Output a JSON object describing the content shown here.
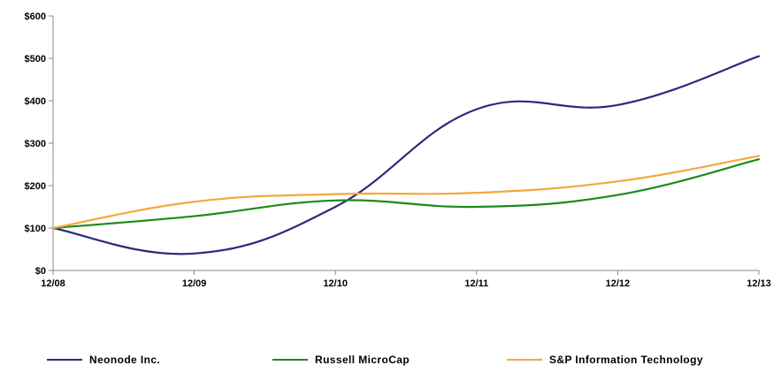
{
  "chart_data": {
    "type": "line",
    "categories": [
      "12/08",
      "12/09",
      "12/10",
      "12/11",
      "12/12",
      "12/13"
    ],
    "ylim": [
      0,
      600
    ],
    "yticks": [
      0,
      100,
      200,
      300,
      400,
      500,
      600
    ],
    "ytick_labels": [
      "$0",
      "$100",
      "$200",
      "$300",
      "$400",
      "$500",
      "$600"
    ],
    "grid": false,
    "legend_position": "bottom",
    "series": [
      {
        "name": "Neonode Inc.",
        "color": "#2B2A7F",
        "values": [
          100,
          40,
          150,
          380,
          390,
          505
        ]
      },
      {
        "name": "Russell MicroCap",
        "color": "#1D8A1D",
        "values": [
          100,
          128,
          165,
          150,
          178,
          262
        ]
      },
      {
        "name": "S&P Information Technology",
        "color": "#F2A93B",
        "values": [
          100,
          162,
          180,
          183,
          210,
          270
        ]
      }
    ]
  }
}
